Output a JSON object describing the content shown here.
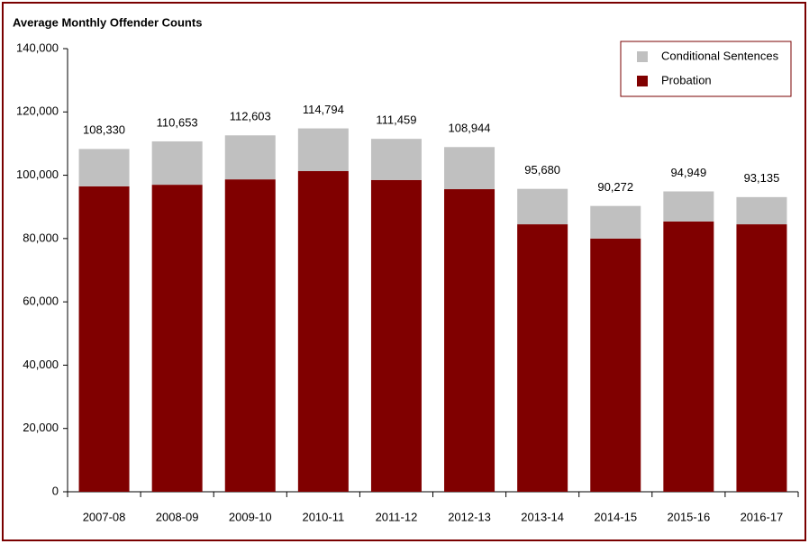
{
  "chart_data": {
    "type": "stacked_bar",
    "title": "Average Monthly Offender Counts",
    "categories": [
      "2007-08",
      "2008-09",
      "2009-10",
      "2010-11",
      "2011-12",
      "2012-13",
      "2013-14",
      "2014-15",
      "2015-16",
      "2016-17"
    ],
    "series": [
      {
        "name": "Probation",
        "color": "#800000",
        "values": [
          96500,
          97000,
          98700,
          101300,
          98500,
          95600,
          84500,
          80000,
          85400,
          84500
        ]
      },
      {
        "name": "Conditional Sentences",
        "color": "#c0c0c0",
        "values": [
          11800,
          13700,
          13900,
          13500,
          13000,
          13300,
          11200,
          10300,
          9500,
          8600
        ]
      }
    ],
    "totals": [
      108330,
      110653,
      112603,
      114794,
      111459,
      108944,
      95680,
      90272,
      94949,
      93135
    ],
    "total_labels": [
      "108,330",
      "110,653",
      "112,603",
      "114,794",
      "111,459",
      "108,944",
      "95,680",
      "90,272",
      "94,949",
      "93,135"
    ],
    "ylim": [
      0,
      140000
    ],
    "yticks": [
      0,
      {
        "value": 20000,
        "label": "20,000"
      },
      {
        "value": 40000,
        "label": "40,000"
      },
      {
        "value": 60000,
        "label": "60,000"
      },
      {
        "value": 80000,
        "label": "80,000"
      },
      {
        "value": 100000,
        "label": "100,000"
      },
      {
        "value": 120000,
        "label": "120,000"
      },
      {
        "value": 140000,
        "label": "140,000"
      }
    ],
    "grid": false,
    "legend": "top-right"
  }
}
